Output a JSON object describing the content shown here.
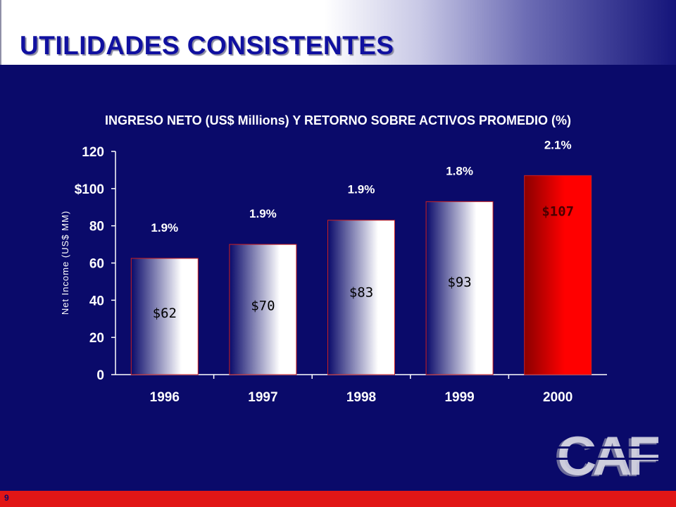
{
  "slide": {
    "title": "UTILIDADES CONSISTENTES",
    "page_number": "9",
    "logo_text": "CAF"
  },
  "chart_data": {
    "type": "bar",
    "title": "INGRESO NETO (US$ Millions) Y RETORNO SOBRE ACTIVOS PROMEDIO (%)",
    "ylabel": "Net Income (US$ MM)",
    "xlabel": "",
    "ylim": [
      0,
      120
    ],
    "yticks": [
      0,
      20,
      40,
      60,
      80,
      100,
      120
    ],
    "ytick_labels": [
      "0",
      "20",
      "40",
      "60",
      "80",
      "$100",
      "120"
    ],
    "categories": [
      "1996",
      "1997",
      "1998",
      "1999",
      "2000"
    ],
    "values": [
      62.5,
      70,
      83,
      93,
      107
    ],
    "value_labels": [
      "$62",
      "$70",
      "$83",
      "$93",
      "$107"
    ],
    "roa_labels": [
      "1.9%",
      "1.9%",
      "1.9%",
      "1.8%",
      "2.1%"
    ],
    "roa_label_y": [
      27,
      40,
      53,
      66,
      71
    ],
    "highlight_index": 4,
    "grid": false,
    "colors": {
      "bar_dark": "#0a0a6a",
      "bar_light": "#ffffff",
      "highlight_dark": "#8a0000",
      "highlight_light": "#ff0000",
      "bar_border": "#cc2020",
      "text": "#ffffff",
      "value_text_normal": "#000000",
      "value_text_highlight": "#4a0000"
    }
  }
}
